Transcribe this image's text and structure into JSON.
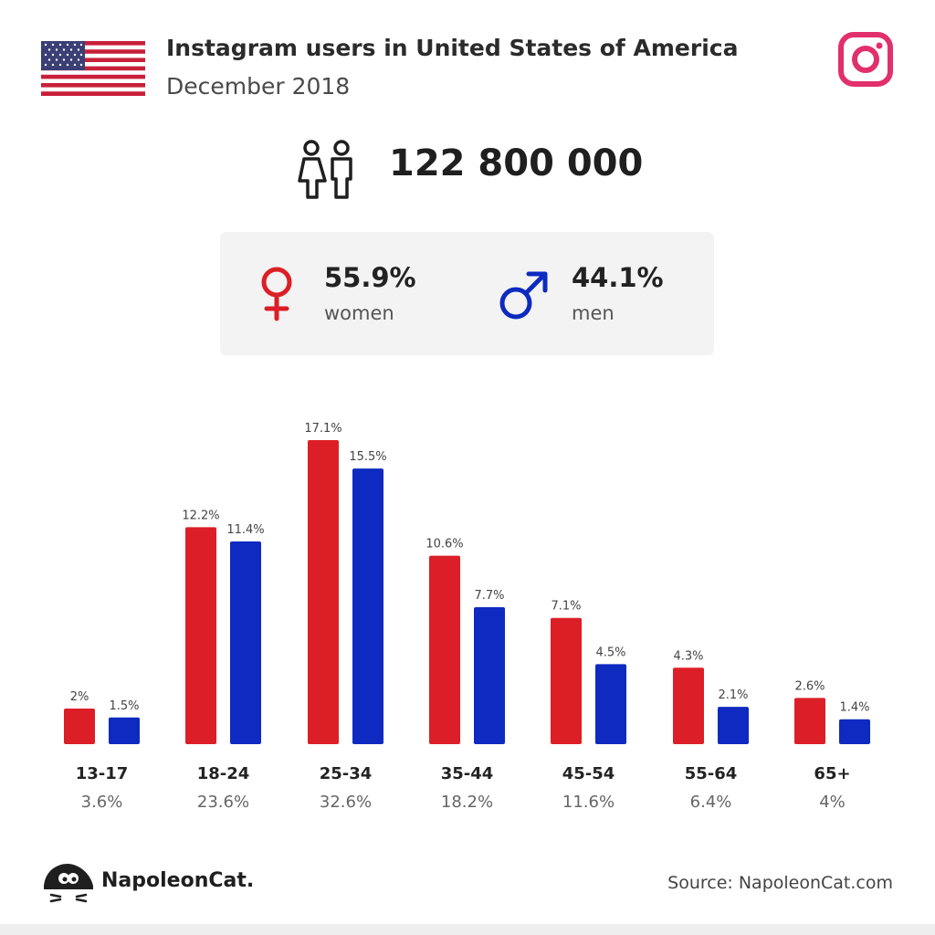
{
  "header": {
    "title": "Instagram users in United States of America",
    "subtitle": "December 2018"
  },
  "total_users": "122 800 000",
  "gender": {
    "women_pct": "55.9%",
    "women_label": "women",
    "men_pct": "44.1%",
    "men_label": "men"
  },
  "icons": {
    "flag": "us-flag-icon",
    "brand": "instagram-icon",
    "people": "people-icon",
    "female": "female-symbol-icon",
    "male": "male-symbol-icon",
    "logo": "napoleoncat-logo"
  },
  "colors": {
    "women": "#dc1f26",
    "men": "#0e2ac0",
    "instagram": "#e1306c"
  },
  "chart_data": {
    "type": "bar",
    "categories": [
      "13-17",
      "18-24",
      "25-34",
      "35-44",
      "45-54",
      "55-64",
      "65+"
    ],
    "category_totals": [
      "3.6%",
      "23.6%",
      "32.6%",
      "18.2%",
      "11.6%",
      "6.4%",
      "4%"
    ],
    "series": [
      {
        "name": "women",
        "values": [
          2,
          12.2,
          17.1,
          10.6,
          7.1,
          4.3,
          2.6
        ],
        "labels": [
          "2%",
          "12.2%",
          "17.1%",
          "10.6%",
          "7.1%",
          "4.3%",
          "2.6%"
        ],
        "color": "#dc1f26"
      },
      {
        "name": "men",
        "values": [
          1.5,
          11.4,
          15.5,
          7.7,
          4.5,
          2.1,
          1.4
        ],
        "labels": [
          "1.5%",
          "11.4%",
          "15.5%",
          "7.7%",
          "4.5%",
          "2.1%",
          "1.4%"
        ],
        "color": "#0e2ac0"
      }
    ],
    "title": "",
    "xlabel": "",
    "ylabel": "",
    "ylim": [
      0,
      17.1
    ],
    "grid": false
  },
  "footer": {
    "brand": "NapoleonCat.",
    "source": "Source: NapoleonCat.com"
  }
}
